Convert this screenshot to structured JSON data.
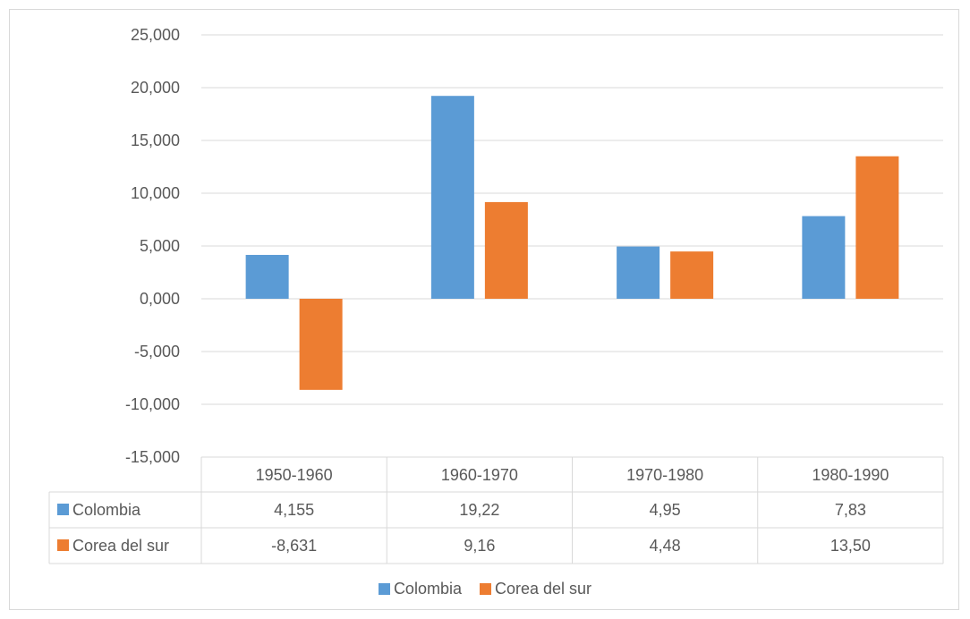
{
  "chart_data": {
    "type": "bar",
    "title": "",
    "xlabel": "",
    "ylabel": "",
    "categories": [
      "1950-1960",
      "1960-1970",
      "1970-1980",
      "1980-1990"
    ],
    "series": [
      {
        "name": "Colombia",
        "color": "#5b9bd5",
        "values": [
          4.155,
          19.22,
          4.95,
          7.83
        ],
        "labels": [
          "4,155",
          "19,22",
          "4,95",
          "7,83"
        ]
      },
      {
        "name": "Corea del sur",
        "color": "#ed7d31",
        "values": [
          -8.631,
          9.16,
          4.48,
          13.5
        ],
        "labels": [
          "-8,631",
          "9,16",
          "4,48",
          "13,50"
        ]
      }
    ],
    "ylim": [
      -15,
      25
    ],
    "yticks": [
      25,
      20,
      15,
      10,
      5,
      0,
      -5,
      -10,
      -15
    ],
    "ytick_labels": [
      "25,000",
      "20,000",
      "15,000",
      "10,000",
      "5,000",
      "0,000",
      "-5,000",
      "-10,000",
      "-15,000"
    ],
    "grid": true,
    "legend_position": "bottom",
    "data_table": true
  }
}
